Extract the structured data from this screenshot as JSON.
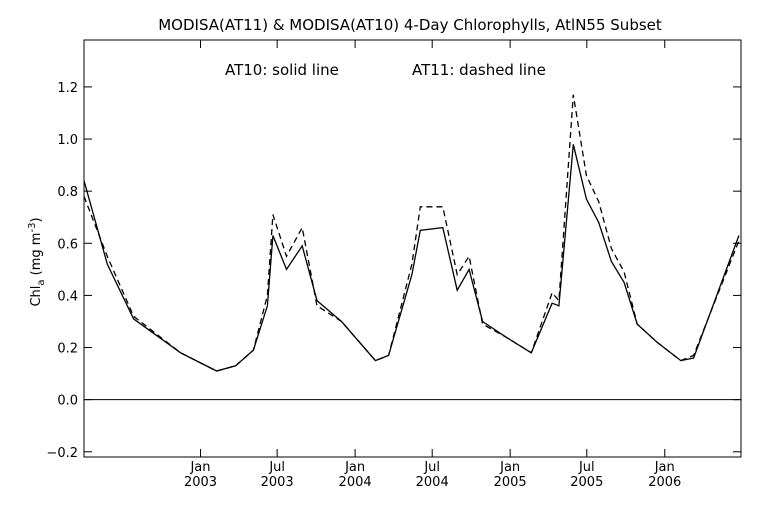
{
  "chart_data": {
    "type": "line",
    "title": "MODISA(AT11) & MODISA(AT10) 4-Day Chlorophylls, AtlN55 Subset",
    "annotation_left": "AT10: solid line",
    "annotation_right": "AT11: dashed line",
    "ylabel": "Chl",
    "ylabel_sub": "a",
    "ylabel_units": " (mg m",
    "ylabel_exp": "-3",
    "ylabel_close": ")",
    "xlim": [
      "2002-04-01",
      "2006-06-30"
    ],
    "ylim": [
      -0.22,
      1.38
    ],
    "y_ticks": [
      {
        "value": -0.2,
        "label": "−0.2"
      },
      {
        "value": 0.0,
        "label": "0.0"
      },
      {
        "value": 0.2,
        "label": "0.2"
      },
      {
        "value": 0.4,
        "label": "0.4"
      },
      {
        "value": 0.6,
        "label": "0.6"
      },
      {
        "value": 0.8,
        "label": "0.8"
      },
      {
        "value": 1.0,
        "label": "1.0"
      },
      {
        "value": 1.2,
        "label": "1.2"
      }
    ],
    "x_ticks": [
      {
        "date": "2003-01-01",
        "month": "Jan",
        "year": "2003"
      },
      {
        "date": "2003-07-01",
        "month": "Jul",
        "year": "2003"
      },
      {
        "date": "2004-01-01",
        "month": "Jan",
        "year": "2004"
      },
      {
        "date": "2004-07-01",
        "month": "Jul",
        "year": "2004"
      },
      {
        "date": "2005-01-01",
        "month": "Jan",
        "year": "2005"
      },
      {
        "date": "2005-07-01",
        "month": "Jul",
        "year": "2005"
      },
      {
        "date": "2006-01-01",
        "month": "Jan",
        "year": "2006"
      }
    ],
    "zero_line": 0.0,
    "series": [
      {
        "style": "solid",
        "points": [
          [
            "2002-04-01",
            0.84
          ],
          [
            "2002-05-26",
            0.52
          ],
          [
            "2002-07-27",
            0.31
          ],
          [
            "2002-11-15",
            0.18
          ],
          [
            "2003-02-08",
            0.11
          ],
          [
            "2003-03-25",
            0.13
          ],
          [
            "2003-05-06",
            0.19
          ],
          [
            "2003-06-08",
            0.36
          ],
          [
            "2003-06-21",
            0.63
          ],
          [
            "2003-07-23",
            0.5
          ],
          [
            "2003-08-29",
            0.59
          ],
          [
            "2003-10-03",
            0.38
          ],
          [
            "2003-11-30",
            0.3
          ],
          [
            "2004-02-18",
            0.15
          ],
          [
            "2004-03-20",
            0.17
          ],
          [
            "2004-05-14",
            0.48
          ],
          [
            "2004-06-03",
            0.65
          ],
          [
            "2004-07-26",
            0.66
          ],
          [
            "2004-08-29",
            0.42
          ],
          [
            "2004-09-26",
            0.5
          ],
          [
            "2004-10-28",
            0.3
          ],
          [
            "2004-12-22",
            0.24
          ],
          [
            "2005-02-20",
            0.18
          ],
          [
            "2005-04-10",
            0.37
          ],
          [
            "2005-04-26",
            0.36
          ],
          [
            "2005-05-30",
            0.98
          ],
          [
            "2005-06-30",
            0.77
          ],
          [
            "2005-07-29",
            0.68
          ],
          [
            "2005-08-28",
            0.53
          ],
          [
            "2005-09-27",
            0.45
          ],
          [
            "2005-10-28",
            0.29
          ],
          [
            "2005-12-14",
            0.22
          ],
          [
            "2006-02-08",
            0.15
          ],
          [
            "2006-03-10",
            0.16
          ],
          [
            "2006-06-25",
            0.63
          ]
        ]
      },
      {
        "style": "dashed",
        "points": [
          [
            "2002-04-01",
            0.78
          ],
          [
            "2002-05-26",
            0.55
          ],
          [
            "2002-07-27",
            0.32
          ],
          [
            "2002-11-15",
            0.18
          ],
          [
            "2003-02-08",
            0.11
          ],
          [
            "2003-03-25",
            0.13
          ],
          [
            "2003-05-06",
            0.19
          ],
          [
            "2003-06-08",
            0.4
          ],
          [
            "2003-06-21",
            0.71
          ],
          [
            "2003-07-23",
            0.55
          ],
          [
            "2003-08-29",
            0.66
          ],
          [
            "2003-10-03",
            0.36
          ],
          [
            "2003-11-30",
            0.3
          ],
          [
            "2004-02-18",
            0.15
          ],
          [
            "2004-03-20",
            0.17
          ],
          [
            "2004-05-14",
            0.52
          ],
          [
            "2004-06-03",
            0.74
          ],
          [
            "2004-07-26",
            0.74
          ],
          [
            "2004-08-29",
            0.48
          ],
          [
            "2004-09-26",
            0.55
          ],
          [
            "2004-10-28",
            0.29
          ],
          [
            "2004-12-22",
            0.24
          ],
          [
            "2005-02-20",
            0.18
          ],
          [
            "2005-04-10",
            0.41
          ],
          [
            "2005-04-26",
            0.38
          ],
          [
            "2005-05-30",
            1.17
          ],
          [
            "2005-06-30",
            0.86
          ],
          [
            "2005-07-29",
            0.76
          ],
          [
            "2005-08-28",
            0.58
          ],
          [
            "2005-09-27",
            0.49
          ],
          [
            "2005-10-28",
            0.29
          ],
          [
            "2005-12-14",
            0.22
          ],
          [
            "2006-02-08",
            0.15
          ],
          [
            "2006-03-10",
            0.17
          ],
          [
            "2006-06-25",
            0.61
          ]
        ]
      }
    ]
  }
}
